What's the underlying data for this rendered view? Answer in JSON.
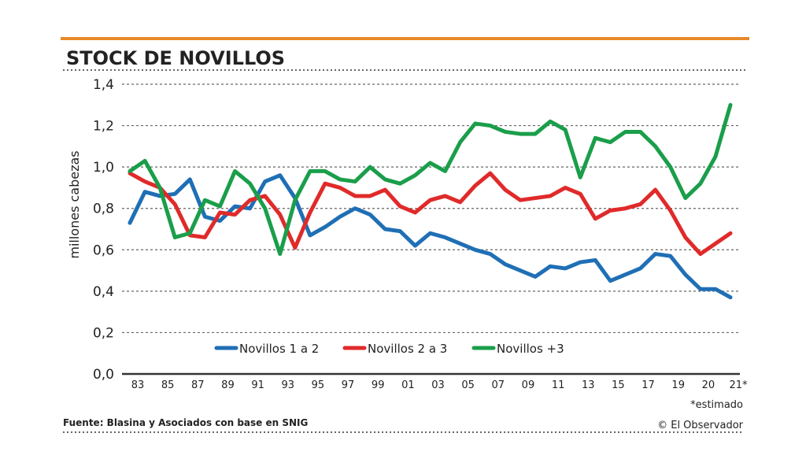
{
  "chart_data": {
    "type": "line",
    "title": "STOCK DE NOVILLOS",
    "ylabel": "millones cabezas",
    "xlabel": "",
    "ylim": [
      0,
      1.4
    ],
    "yticks": [
      "0,0",
      "0,2",
      "0,4",
      "0,6",
      "0,8",
      "1,0",
      "1,2",
      "1,4"
    ],
    "xtick_labels": [
      "83",
      "85",
      "87",
      "89",
      "91",
      "93",
      "95",
      "97",
      "99",
      "01",
      "03",
      "05",
      "07",
      "09",
      "11",
      "13",
      "15",
      "17",
      "19",
      "20",
      "21*"
    ],
    "grid": true,
    "legend_position": "bottom-center",
    "series": [
      {
        "name": "Novillos 1 a 2",
        "color": "#1f6fb5",
        "values": [
          0.73,
          0.88,
          0.86,
          0.87,
          0.94,
          0.76,
          0.74,
          0.81,
          0.8,
          0.93,
          0.96,
          0.85,
          0.67,
          0.71,
          0.76,
          0.8,
          0.77,
          0.7,
          0.69,
          0.62,
          0.68,
          0.66,
          0.63,
          0.6,
          0.58,
          0.53,
          0.5,
          0.47,
          0.52,
          0.51,
          0.54,
          0.55,
          0.45,
          0.48,
          0.51,
          0.58,
          0.57,
          0.48,
          0.41,
          0.41,
          0.37
        ]
      },
      {
        "name": "Novillos 2 a 3",
        "color": "#e02a2a",
        "values": [
          0.97,
          0.93,
          0.9,
          0.82,
          0.67,
          0.66,
          0.78,
          0.77,
          0.84,
          0.86,
          0.77,
          0.61,
          0.78,
          0.92,
          0.9,
          0.86,
          0.86,
          0.89,
          0.81,
          0.78,
          0.84,
          0.86,
          0.83,
          0.91,
          0.97,
          0.89,
          0.84,
          0.85,
          0.86,
          0.9,
          0.87,
          0.75,
          0.79,
          0.8,
          0.82,
          0.89,
          0.79,
          0.66,
          0.58,
          0.63,
          0.68
        ]
      },
      {
        "name": "Novillos +3",
        "color": "#1a9e4a",
        "values": [
          0.98,
          1.03,
          0.9,
          0.66,
          0.68,
          0.84,
          0.81,
          0.98,
          0.92,
          0.8,
          0.58,
          0.84,
          0.98,
          0.98,
          0.94,
          0.93,
          1.0,
          0.94,
          0.92,
          0.96,
          1.02,
          0.98,
          1.12,
          1.21,
          1.2,
          1.17,
          1.16,
          1.16,
          1.22,
          1.18,
          0.95,
          1.14,
          1.12,
          1.17,
          1.17,
          1.1,
          1.0,
          0.85,
          0.92,
          1.05,
          1.3
        ]
      }
    ],
    "note": "*estimado"
  },
  "footer": {
    "source": "Fuente: Blasina y Asociados con base en SNIG",
    "credit": "© El Observador"
  },
  "colors": {
    "accent": "#e8892b"
  }
}
